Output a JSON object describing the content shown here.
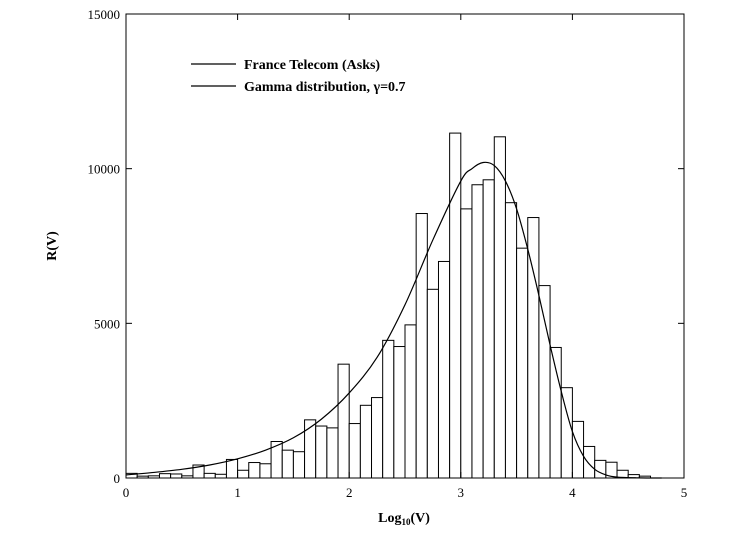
{
  "chart_data": {
    "type": "bar",
    "title": "",
    "xlabel": "Log",
    "xlabel_sub": "10",
    "xlabel_tail": "(V)",
    "ylabel": "R(V)",
    "xlim": [
      0,
      5
    ],
    "ylim": [
      0,
      15000
    ],
    "x_ticks": [
      "0",
      "1",
      "2",
      "3",
      "4",
      "5"
    ],
    "y_ticks": [
      "0",
      "5000",
      "10000",
      "15000"
    ],
    "grid": false,
    "legend": {
      "placement": "top-left"
    },
    "bin_width": 0.1,
    "histogram": {
      "name": "France Telecom (Asks)",
      "x_start": [
        0.0,
        0.1,
        0.2,
        0.3,
        0.4,
        0.5,
        0.6,
        0.7,
        0.8,
        0.9,
        1.0,
        1.1,
        1.2,
        1.3,
        1.4,
        1.5,
        1.6,
        1.7,
        1.8,
        1.9,
        2.0,
        2.1,
        2.2,
        2.3,
        2.4,
        2.5,
        2.6,
        2.7,
        2.8,
        2.9,
        3.0,
        3.1,
        3.2,
        3.3,
        3.4,
        3.5,
        3.6,
        3.7,
        3.8,
        3.9,
        4.0,
        4.1,
        4.2,
        4.3,
        4.4,
        4.5,
        4.6
      ],
      "values": [
        150,
        60,
        70,
        140,
        130,
        70,
        420,
        150,
        120,
        600,
        250,
        500,
        460,
        1180,
        900,
        850,
        1880,
        1680,
        1620,
        3680,
        1760,
        2350,
        2600,
        4450,
        4250,
        4950,
        8550,
        6100,
        7000,
        11150,
        8700,
        9480,
        9640,
        11030,
        8900,
        7430,
        8420,
        6220,
        4220,
        2920,
        1830,
        1020,
        570,
        510,
        250,
        110,
        60
      ]
    },
    "curve": {
      "name": "Gamma distribution, γ=0.7",
      "x": [
        0.0,
        0.25,
        0.5,
        0.75,
        1.0,
        1.25,
        1.5,
        1.75,
        2.0,
        2.25,
        2.5,
        2.75,
        3.0,
        3.1,
        3.2,
        3.3,
        3.4,
        3.5,
        3.6,
        3.7,
        3.8,
        3.9,
        4.0,
        4.1,
        4.2,
        4.3,
        4.4,
        4.6,
        4.8
      ],
      "y": [
        100,
        180,
        280,
        420,
        620,
        900,
        1300,
        1900,
        2750,
        3900,
        5600,
        7700,
        9600,
        10000,
        10200,
        10100,
        9600,
        8700,
        7400,
        5900,
        4300,
        2800,
        1500,
        700,
        280,
        100,
        30,
        5,
        0
      ]
    }
  }
}
